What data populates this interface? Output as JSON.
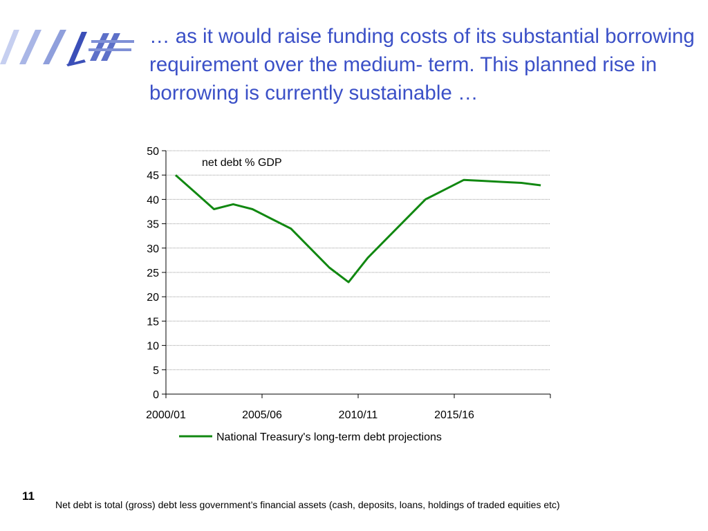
{
  "slide": {
    "title": "… as it would raise funding costs of its substantial borrowing requirement over the medium- term. This planned rise in borrowing is currently sustainable …",
    "page_number": "11",
    "footnote": "Net debt is total (gross) debt less government’s financial assets (cash, deposits, loans, holdings of traded equities etc)",
    "title_color": "#3b50c7",
    "logo_colors": [
      "#3b4fb8",
      "#8f9fdc",
      "#c6cff0"
    ]
  },
  "chart_data": {
    "type": "line",
    "title": "",
    "annotation": "net debt % GDP",
    "xlabel": "",
    "ylabel": "",
    "ylim": [
      0,
      50
    ],
    "y_ticks": [
      "0",
      "5",
      "10",
      "15",
      "20",
      "25",
      "30",
      "35",
      "40",
      "45",
      "50"
    ],
    "x_tick_labels": [
      "2000/01",
      "2005/06",
      "2010/11",
      "2015/16"
    ],
    "grid": true,
    "legend_position": "bottom",
    "series": [
      {
        "name": "National Treasury's long-term debt projections",
        "color": "#118811",
        "x": [
          "2000/01",
          "2001/02",
          "2002/03",
          "2003/04",
          "2004/05",
          "2005/06",
          "2006/07",
          "2007/08",
          "2008/09",
          "2009/10",
          "2010/11",
          "2011/12",
          "2012/13",
          "2013/14",
          "2014/15",
          "2015/16",
          "2016/17",
          "2017/18",
          "2018/19",
          "2019/20"
        ],
        "values": [
          45,
          41.5,
          38,
          39,
          38,
          36,
          34,
          30,
          26,
          23,
          28,
          32,
          36,
          40,
          42,
          44,
          43.8,
          43.6,
          43.4,
          42.9
        ]
      }
    ]
  }
}
